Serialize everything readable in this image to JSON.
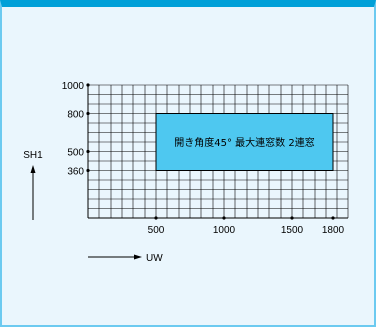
{
  "diagram": {
    "range_label": "開き角度45°  最大連窓数 2連窓",
    "y_axis_label": "SH1",
    "x_axis_label": "UW",
    "y_ticks": [
      "1000",
      "800",
      "500",
      "360"
    ],
    "x_ticks": [
      "500",
      "1000",
      "1500",
      "1800"
    ],
    "colors": {
      "header": "#00a0d8",
      "border": "#6ccaf0",
      "background": "#eaf6fd",
      "range_fill": "#4ec8f0",
      "grid": "#000000"
    }
  }
}
